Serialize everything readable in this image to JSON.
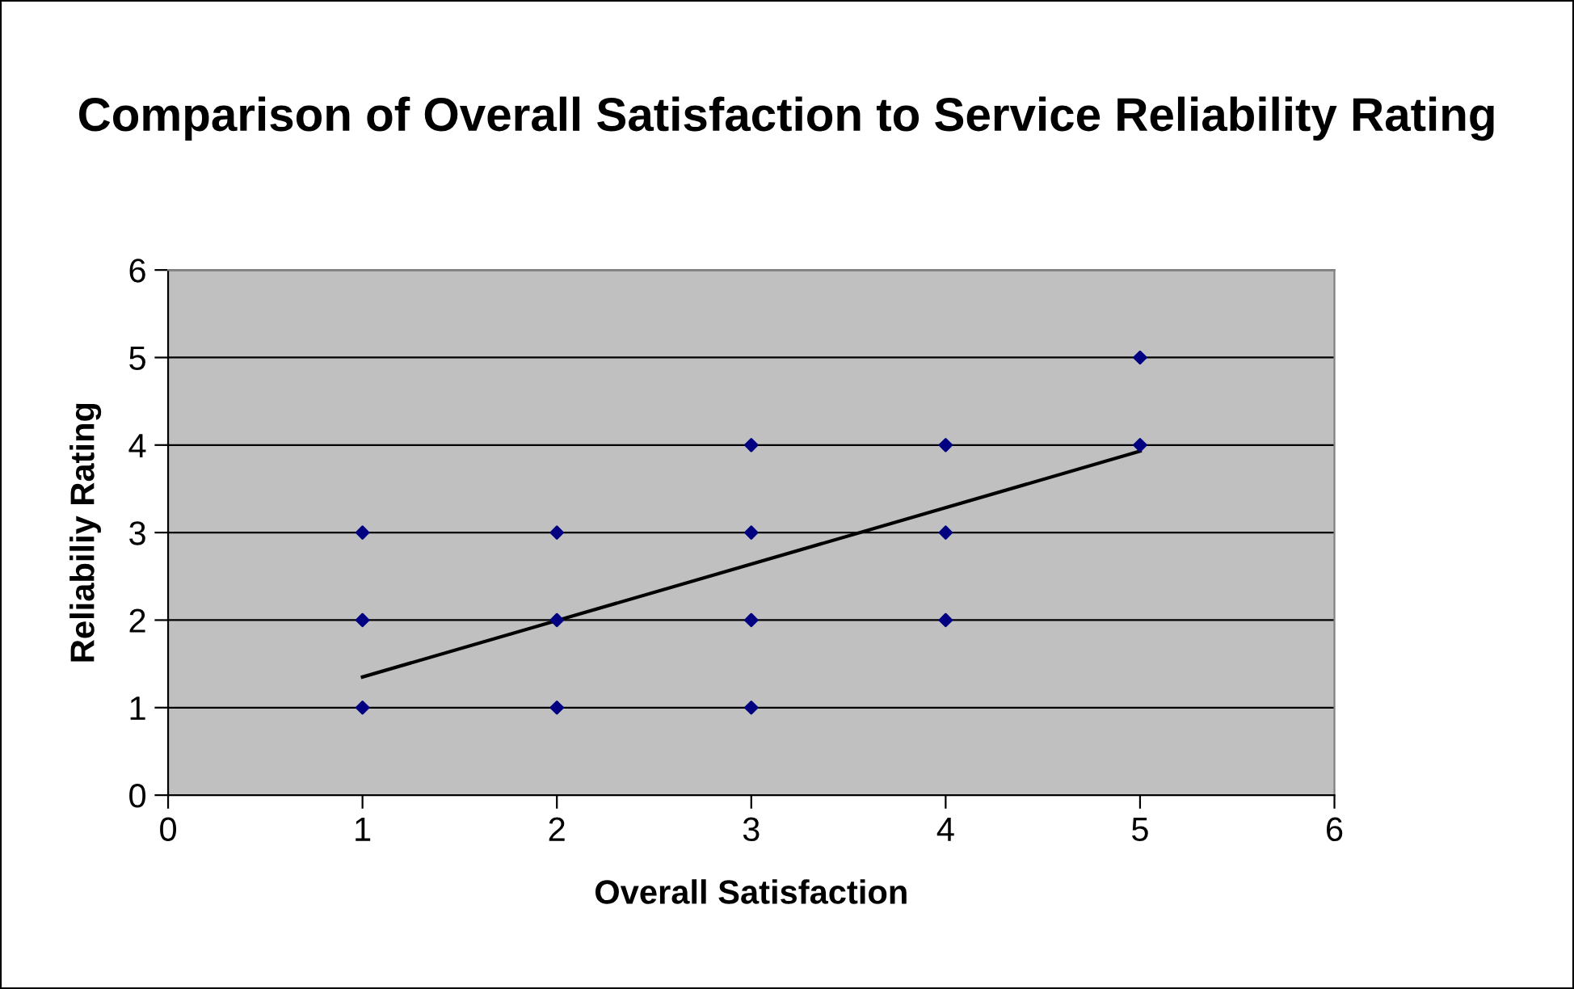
{
  "chart_data": {
    "type": "scatter",
    "title": "Comparison of Overall Satisfaction to Service Reliability Rating",
    "xlabel": "Overall Satisfaction",
    "ylabel": "Reliabiliy Rating",
    "xlim": [
      0,
      6
    ],
    "ylim": [
      0,
      6
    ],
    "xticks": [
      0,
      1,
      2,
      3,
      4,
      5,
      6
    ],
    "yticks": [
      0,
      1,
      2,
      3,
      4,
      5,
      6
    ],
    "grid": "y",
    "legend": false,
    "marker": "diamond",
    "series": [
      {
        "color": "#000080",
        "x": [
          1,
          1,
          1,
          2,
          2,
          2,
          3,
          3,
          3,
          3,
          4,
          4,
          4,
          5,
          5
        ],
        "values": [
          1,
          2,
          3,
          1,
          2,
          3,
          1,
          2,
          3,
          4,
          2,
          3,
          4,
          4,
          5
        ]
      },
      {
        "type": "line",
        "color": "#000000",
        "marker": "none",
        "line_style": "solid",
        "x": [
          1,
          5
        ],
        "values": [
          1.35,
          3.93
        ]
      }
    ]
  }
}
